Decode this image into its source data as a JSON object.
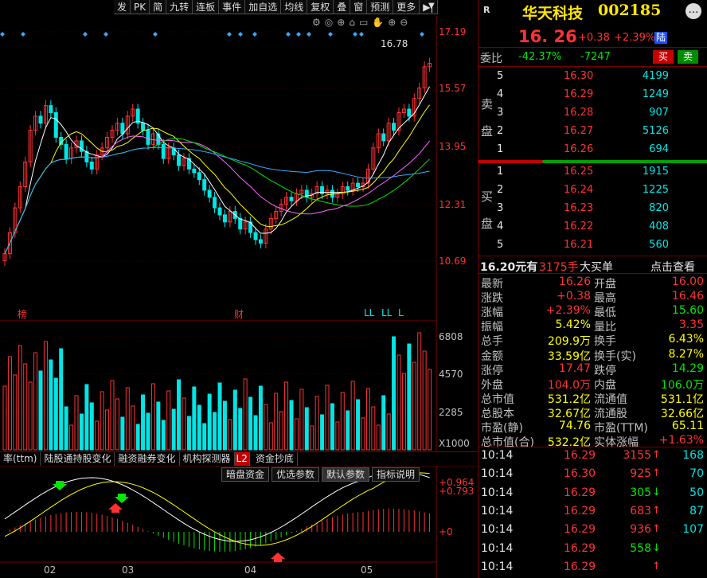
{
  "toolbar": [
    "发",
    "PK",
    "简",
    "九转",
    "连板",
    "事件",
    "加自选",
    "均线",
    "复权",
    "叠",
    "窗",
    "预测",
    "更多"
  ],
  "chart_icons": [
    "gear",
    "eye",
    "lock",
    "trash",
    "folder",
    "hand",
    "zoom-in",
    "zoom-out"
  ],
  "price_axis": [
    "17.19",
    "15.57",
    "13.95",
    "12.31",
    "10.69"
  ],
  "vol_axis": [
    "6808",
    "4570",
    "2285",
    "X1000"
  ],
  "macd_axis": [
    "+0.964",
    "+0.793",
    "+0"
  ],
  "x_labels": [
    "02",
    "03",
    "04",
    "05"
  ],
  "max_label": "16.78",
  "event_markers": [
    "榜",
    "财",
    "LL",
    "LL",
    "L"
  ],
  "indicator_tabs": [
    "率(ttm)",
    "陆股通持股变化",
    "融资融券变化",
    "机构探测器",
    "L2",
    "资金抄底"
  ],
  "macd_tabs": [
    "暗盘资金",
    "优选参数",
    "默认参数",
    "指标说明"
  ],
  "stock": {
    "name": "华天科技",
    "code": "002185",
    "market": "R",
    "price": "16. 26",
    "change": "+0.38",
    "pct": "+2.39%",
    "badge": "陆"
  },
  "weibi": {
    "label": "委比",
    "pct": "-42.37%",
    "diff": "-7247",
    "buy": "买",
    "sell": "卖"
  },
  "sell_side": "卖盘",
  "buy_side": "买盘",
  "asks": [
    {
      "lv": "5",
      "p": "16.30",
      "v": "4199"
    },
    {
      "lv": "4",
      "p": "16.29",
      "v": "1249"
    },
    {
      "lv": "3",
      "p": "16.28",
      "v": "907"
    },
    {
      "lv": "2",
      "p": "16.27",
      "v": "5126"
    },
    {
      "lv": "1",
      "p": "16.26",
      "v": "694"
    }
  ],
  "bids": [
    {
      "lv": "1",
      "p": "16.25",
      "v": "1915"
    },
    {
      "lv": "2",
      "p": "16.24",
      "v": "1225"
    },
    {
      "lv": "3",
      "p": "16.23",
      "v": "820"
    },
    {
      "lv": "4",
      "p": "16.22",
      "v": "408"
    },
    {
      "lv": "5",
      "p": "16.21",
      "v": "560"
    }
  ],
  "bigorder": {
    "text1": "16.20元有",
    "text2": "3175手",
    "text3": "大买单",
    "link": "点击查看"
  },
  "quote": [
    {
      "l1": "最新",
      "v1": "16.26",
      "c1": "red",
      "l2": "开盘",
      "v2": "16.00",
      "c2": "red"
    },
    {
      "l1": "涨跌",
      "v1": "+0.38",
      "c1": "red",
      "l2": "最高",
      "v2": "16.46",
      "c2": "red"
    },
    {
      "l1": "涨幅",
      "v1": "+2.39%",
      "c1": "red",
      "l2": "最低",
      "v2": "15.60",
      "c2": "grn"
    },
    {
      "l1": "振幅",
      "v1": "5.42%",
      "c1": "yel",
      "l2": "量比",
      "v2": "3.35",
      "c2": "red"
    },
    {
      "l1": "总手",
      "v1": "209.9万",
      "c1": "yel",
      "l2": "换手",
      "v2": "6.43%",
      "c2": "yel"
    },
    {
      "l1": "金额",
      "v1": "33.59亿",
      "c1": "yel",
      "l2": "换手(实)",
      "v2": "8.27%",
      "c2": "yel"
    },
    {
      "l1": "涨停",
      "v1": "17.47",
      "c1": "red",
      "l2": "跌停",
      "v2": "14.29",
      "c2": "grn"
    },
    {
      "l1": "外盘",
      "v1": "104.0万",
      "c1": "red",
      "l2": "内盘",
      "v2": "106.0万",
      "c2": "grn"
    },
    {
      "l1": "总市值",
      "v1": "531.2亿",
      "c1": "yel",
      "l2": "流通值",
      "v2": "531.1亿",
      "c2": "yel"
    },
    {
      "l1": "总股本",
      "v1": "32.67亿",
      "c1": "yel",
      "l2": "流通股",
      "v2": "32.66亿",
      "c2": "yel"
    },
    {
      "l1": "市盈(静)",
      "v1": "74.76",
      "c1": "yel",
      "l2": "市盈(TTM)",
      "v2": "65.11",
      "c2": "yel"
    },
    {
      "l1": "总市值(合)",
      "v1": "532.2亿",
      "c1": "yel",
      "l2": "实体涨幅",
      "v2": "+1.63%",
      "c2": "red"
    }
  ],
  "ticks": [
    {
      "t": "10:14",
      "p": "16.29",
      "v": "3155",
      "n": "168",
      "c": "red"
    },
    {
      "t": "10:14",
      "p": "16.30",
      "v": "925",
      "n": "70",
      "c": "red"
    },
    {
      "t": "10:14",
      "p": "16.29",
      "v": "305",
      "n": "50",
      "c": "grn"
    },
    {
      "t": "10:14",
      "p": "16.29",
      "v": "683",
      "n": "87",
      "c": "red"
    },
    {
      "t": "10:14",
      "p": "16.29",
      "v": "936",
      "n": "107",
      "c": "red"
    },
    {
      "t": "10:14",
      "p": "16.29",
      "v": "558",
      "n": "",
      "c": "grn"
    },
    {
      "t": "10:14",
      "p": "16.29",
      "v": "",
      "n": "",
      "c": "red"
    }
  ],
  "colors": {
    "up": "#ff3232",
    "down": "#00e6e6",
    "grid": "#7a0000"
  }
}
